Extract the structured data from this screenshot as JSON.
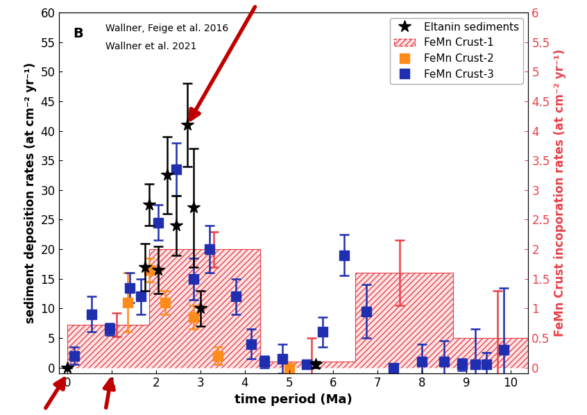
{
  "chart_data": {
    "type": "scatter",
    "x_label": "time period (Ma)",
    "y_label": "sediment deposition rates (at cm⁻² yr⁻¹)",
    "y2_label": "FeMn Crust incoporation rates (at cm⁻² yr⁻¹)",
    "annotations": [
      "B",
      "Wallner, Feige et al. 2016",
      "Wallner et al. 2021"
    ],
    "xlim": [
      -0.2,
      10.4
    ],
    "xticks": [
      0,
      1,
      2,
      3,
      4,
      5,
      6,
      7,
      8,
      9,
      10
    ],
    "ylim": [
      -1,
      60
    ],
    "yticks": [
      0,
      5,
      10,
      15,
      20,
      25,
      30,
      35,
      40,
      45,
      50,
      55,
      60
    ],
    "y2lim": [
      -0.1,
      6
    ],
    "y2ticks": [
      0,
      0.5,
      1,
      1.5,
      2,
      2.5,
      3,
      3.5,
      4,
      4.5,
      5,
      5.5,
      6
    ],
    "legend": "upper right",
    "grid": false,
    "series": [
      {
        "name": "Eltanin sediments",
        "type": "scatter",
        "color": "#000000",
        "marker": "star",
        "axis": "y",
        "x": [
          0.0,
          1.75,
          1.85,
          2.05,
          2.25,
          2.45,
          2.7,
          2.85,
          3.0,
          5.6
        ],
        "values": [
          0,
          17,
          27.5,
          16.5,
          32.5,
          24,
          41,
          27,
          10,
          0.5
        ],
        "errors": [
          0,
          4,
          3.5,
          4,
          6.5,
          5,
          7,
          10,
          3,
          0.5
        ]
      },
      {
        "name": "FeMn Crust-1",
        "type": "step_area",
        "color": "#e8424a",
        "axis": "y2",
        "bins": [
          0,
          1.85,
          4.35,
          6.5,
          8.7,
          11
        ],
        "values": [
          0.72,
          2.0,
          0.1,
          1.6,
          0.5
        ],
        "error_bars": {
          "x": [
            1.1,
            3.3,
            5.5,
            7.5,
            9.7
          ],
          "values": [
            0.72,
            2.0,
            0.1,
            1.6,
            0.5
          ],
          "errors": [
            0.2,
            0.3,
            0.4,
            0.55,
            0.8
          ]
        }
      },
      {
        "name": "FeMn Crust-2",
        "type": "scatter",
        "color": "#ff8c1a",
        "marker": "square",
        "axis": "y2",
        "x": [
          1.35,
          1.85,
          2.2,
          2.85,
          3.4,
          5.0
        ],
        "values": [
          1.1,
          1.65,
          1.1,
          0.85,
          0.2,
          0.0
        ],
        "errors": [
          0.5,
          0.2,
          0.2,
          0.2,
          0.15,
          0.05
        ]
      },
      {
        "name": "FeMn Crust-3",
        "type": "scatter",
        "color": "#1f2fb0",
        "marker": "square",
        "axis": "y2",
        "x": [
          0.15,
          0.55,
          0.95,
          1.4,
          1.65,
          2.05,
          2.45,
          2.85,
          3.2,
          3.8,
          4.15,
          4.45,
          4.85,
          5.4,
          5.75,
          6.25,
          6.75,
          7.35,
          8.0,
          8.5,
          8.9,
          9.2,
          9.45,
          9.85
        ],
        "values": [
          0.2,
          0.9,
          0.65,
          1.35,
          1.2,
          2.45,
          3.35,
          1.5,
          2.0,
          1.2,
          0.4,
          0.1,
          0.15,
          0.05,
          0.6,
          1.9,
          0.95,
          0.0,
          0.1,
          0.1,
          0.05,
          0.05,
          0.05,
          0.3
        ],
        "errors": [
          0.15,
          0.3,
          0.1,
          0.25,
          0.3,
          0.3,
          0.45,
          0.35,
          0.4,
          0.3,
          0.25,
          0.1,
          0.25,
          0.05,
          0.25,
          0.35,
          0.45,
          0.05,
          0.3,
          0.35,
          0.1,
          0.6,
          0.2,
          1.05
        ]
      }
    ]
  }
}
